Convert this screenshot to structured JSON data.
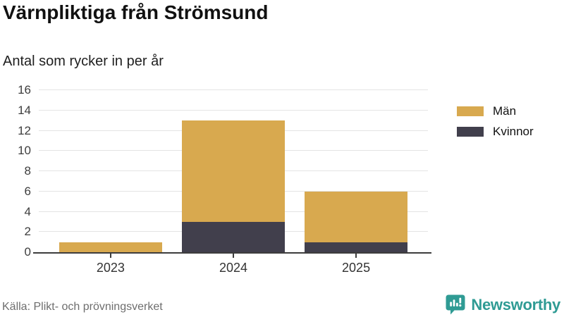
{
  "chart_data": {
    "type": "bar",
    "stacked": true,
    "title": "Värnpliktiga från Strömsund",
    "subtitle": "Antal som rycker in per år",
    "categories": [
      "2023",
      "2024",
      "2025"
    ],
    "series": [
      {
        "name": "Män",
        "color": "#d8a94f",
        "values": [
          1,
          10,
          5
        ]
      },
      {
        "name": "Kvinnor",
        "color": "#413f4c",
        "values": [
          0,
          3,
          1
        ]
      }
    ],
    "stack_bottom_to_top": [
      "Kvinnor",
      "Män"
    ],
    "totals": [
      1,
      13,
      6
    ],
    "ylim": [
      0,
      16
    ],
    "yticks": [
      0,
      2,
      4,
      6,
      8,
      10,
      12,
      14,
      16
    ],
    "grid": "horizontal",
    "legend_position": "right"
  },
  "footer": {
    "source": "Källa: Plikt- och prövningsverket",
    "brand": "Newsworthy"
  },
  "colors": {
    "accent_teal": "#2f9b94",
    "grid": "#e4e4e4",
    "axis": "#3d3d3d",
    "bar_men": "#d8a94f",
    "bar_women": "#413f4c"
  }
}
